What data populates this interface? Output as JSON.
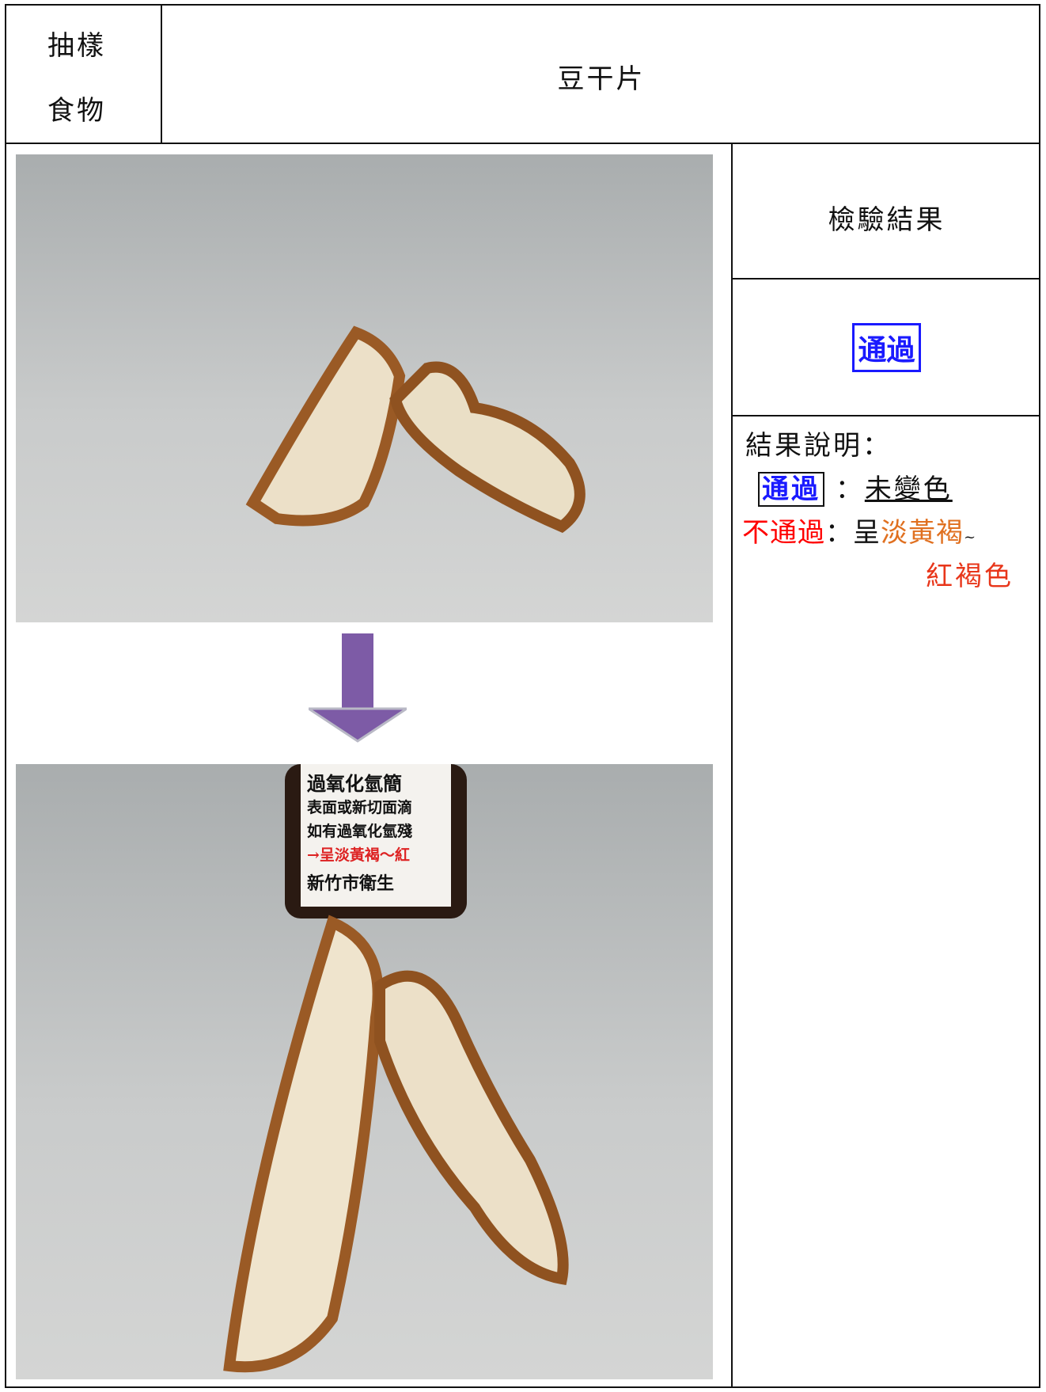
{
  "header": {
    "label_lines": [
      "抽樣",
      "食物"
    ],
    "food": "豆干片"
  },
  "result": {
    "heading": "檢驗結果",
    "value": "通過"
  },
  "legend": {
    "title": "結果說明：",
    "pass_label": "通過",
    "pass_sep": "：",
    "pass_desc": "未變色",
    "fail_label": "不通過",
    "fail_sep": "：呈",
    "fail_color_1": "淡黃褐",
    "fail_tilde": "~",
    "fail_color_2": "紅褐色"
  },
  "photos": {
    "after_bottle_label": [
      "過氧化氫簡",
      "表面或新切面滴",
      "如有過氧化氫殘",
      "→呈淡黃褐～紅",
      "新竹市衛生"
    ]
  }
}
